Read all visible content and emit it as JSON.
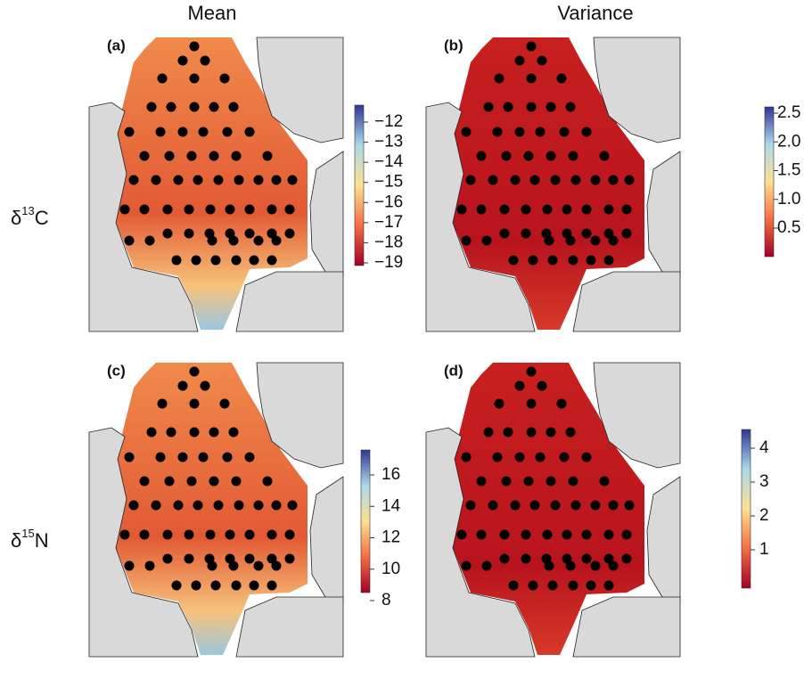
{
  "columns": [
    "Mean",
    "Variance"
  ],
  "rows": [
    {
      "symbol": "δ",
      "superscript": "13",
      "element": "C"
    },
    {
      "symbol": "δ",
      "superscript": "15",
      "element": "N"
    }
  ],
  "panels": [
    {
      "label": "(a)",
      "colorbar_ticks": [
        "−12",
        "−13",
        "−14",
        "−15",
        "−16",
        "−17",
        "−18",
        "−19"
      ]
    },
    {
      "label": "(b)",
      "colorbar_ticks": [
        "2.5",
        "2.0",
        "1.5",
        "1.0",
        "0.5"
      ]
    },
    {
      "label": "(c)",
      "colorbar_ticks": [
        "16",
        "14",
        "12",
        "10",
        "8"
      ]
    },
    {
      "label": "(d)",
      "colorbar_ticks": [
        "4",
        "3",
        "2",
        "1"
      ]
    }
  ]
}
